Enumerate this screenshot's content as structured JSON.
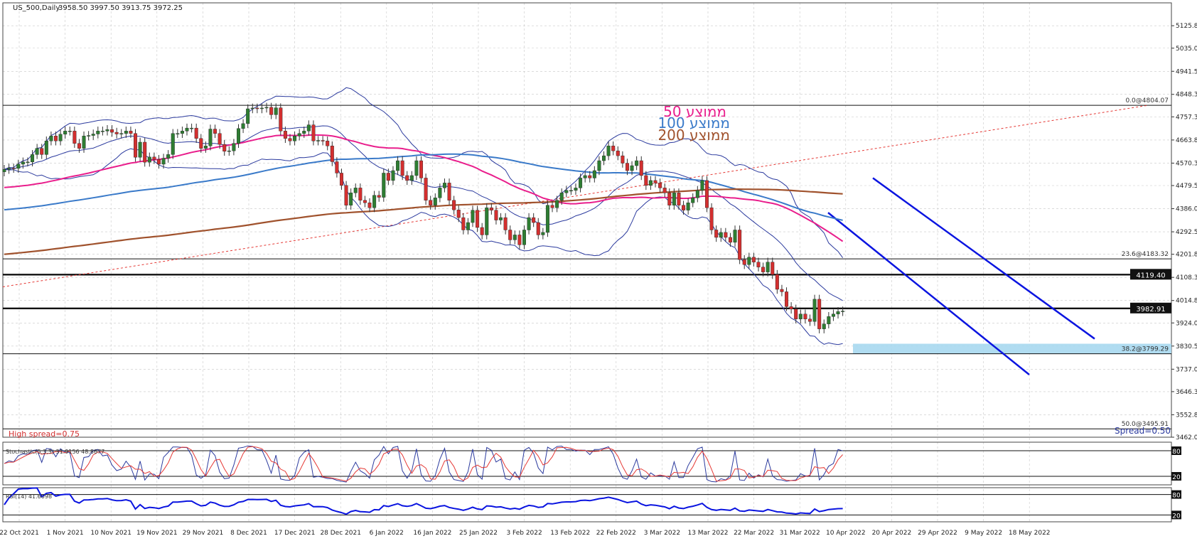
{
  "window": {
    "symbol": "US_500,Daily",
    "ohlc": "3958.50 3997.50 3913.75 3972.25"
  },
  "colors": {
    "bull": "#2e7d32",
    "bear": "#d32f2f",
    "ma50": "#e91e8c",
    "ma100": "#3a7ac9",
    "ma200": "#a0522d",
    "bollinger": "#2b3a9e",
    "channel": "#0a14e0",
    "support_zone": "#a7d8ef",
    "grid": "#c8c8c8"
  },
  "chart_data": [
    {
      "type": "candlestick",
      "title": "US_500,Daily",
      "ylim": [
        3462.05,
        5218.3
      ],
      "yticks": [
        "5125.80",
        "5035.05",
        "4941.55",
        "4848.30",
        "4757.30",
        "4663.80",
        "4570.30",
        "4479.55",
        "4386.05",
        "4292.55",
        "4201.80",
        "4108.30",
        "4014.80",
        "3924.05",
        "3830.55",
        "3737.05",
        "3646.30",
        "3552.80",
        "3462.05"
      ],
      "xlabels": [
        "22 Oct 2021",
        "1 Nov 2021",
        "10 Nov 2021",
        "19 Nov 2021",
        "29 Nov 2021",
        "8 Dec 2021",
        "17 Dec 2021",
        "28 Dec 2021",
        "6 Jan 2022",
        "16 Jan 2022",
        "25 Jan 2022",
        "3 Feb 2022",
        "13 Feb 2022",
        "22 Feb 2022",
        "3 Mar 2022",
        "13 Mar 2022",
        "22 Mar 2022",
        "31 Mar 2022",
        "10 Apr 2022",
        "20 Apr 2022",
        "29 Apr 2022",
        "9 May 2022",
        "18 May 2022"
      ],
      "close": [
        4545,
        4550,
        4549,
        4566,
        4575,
        4575,
        4605,
        4630,
        4605,
        4660,
        4680,
        4660,
        4687,
        4700,
        4700,
        4650,
        4630,
        4680,
        4682,
        4688,
        4700,
        4700,
        4706,
        4695,
        4688,
        4690,
        4700,
        4690,
        4594,
        4655,
        4574,
        4595,
        4585,
        4566,
        4590,
        4605,
        4690,
        4690,
        4700,
        4712,
        4712,
        4670,
        4630,
        4640,
        4708,
        4690,
        4646,
        4618,
        4620,
        4650,
        4710,
        4730,
        4790,
        4793,
        4790,
        4793,
        4796,
        4766,
        4794,
        4700,
        4670,
        4660,
        4680,
        4690,
        4700,
        4725,
        4660,
        4662,
        4660,
        4640,
        4576,
        4530,
        4480,
        4400,
        4450,
        4470,
        4420,
        4410,
        4390,
        4440,
        4432,
        4530,
        4500,
        4540,
        4580,
        4520,
        4500,
        4520,
        4580,
        4510,
        4420,
        4400,
        4430,
        4470,
        4490,
        4420,
        4381,
        4350,
        4300,
        4330,
        4380,
        4310,
        4280,
        4390,
        4380,
        4340,
        4350,
        4300,
        4260,
        4280,
        4240,
        4300,
        4350,
        4330,
        4280,
        4290,
        4400,
        4390,
        4420,
        4450,
        4460,
        4460,
        4470,
        4510,
        4520,
        4510,
        4540,
        4580,
        4600,
        4640,
        4620,
        4600,
        4570,
        4540,
        4560,
        4580,
        4520,
        4480,
        4500,
        4490,
        4470,
        4450,
        4400,
        4450,
        4400,
        4380,
        4410,
        4430,
        4460,
        4500,
        4390,
        4300,
        4270,
        4290,
        4270,
        4250,
        4300,
        4180,
        4160,
        4190,
        4170,
        4150,
        4130,
        4170,
        4120,
        4060,
        4050,
        3990,
        3980,
        3940,
        3960,
        3940,
        3930,
        4020,
        3900,
        3920,
        3950,
        3960,
        3970,
        3972.25
      ],
      "series": [
        {
          "name": "50 ממוצע",
          "kind": "ma"
        },
        {
          "name": "100 ממוצע",
          "kind": "ma"
        },
        {
          "name": "200 ממוצע",
          "kind": "ma"
        }
      ],
      "levels": [
        {
          "label": "0.0@4804.07",
          "value": 4804.07
        },
        {
          "label": "23.6@4183.32",
          "value": 4183.32
        },
        {
          "label": "4119.40",
          "value": 4119.4,
          "boxed": true
        },
        {
          "label": "3982.91",
          "value": 3982.91,
          "boxed": true
        },
        {
          "label": "38.2@3799.29",
          "value": 3799.29
        },
        {
          "label": "50.0@3495.91",
          "value": 3495.91
        }
      ],
      "annotations": {
        "high_spread": "High spread=0.75",
        "spread": "Spread=0.50"
      }
    },
    {
      "type": "line",
      "title": "Stoch",
      "label": "Stochastic(5,3,3) 31.9156 48.8677",
      "ylim": [
        0,
        100
      ],
      "levels": [
        80,
        20
      ],
      "tick_labels": [
        "80",
        "20"
      ]
    },
    {
      "type": "line",
      "title": "RSI",
      "label": "RSI(14) 41.6098",
      "ylim": [
        0,
        100
      ],
      "levels": [
        80,
        20
      ],
      "tick_labels": [
        "80",
        "20"
      ]
    }
  ]
}
